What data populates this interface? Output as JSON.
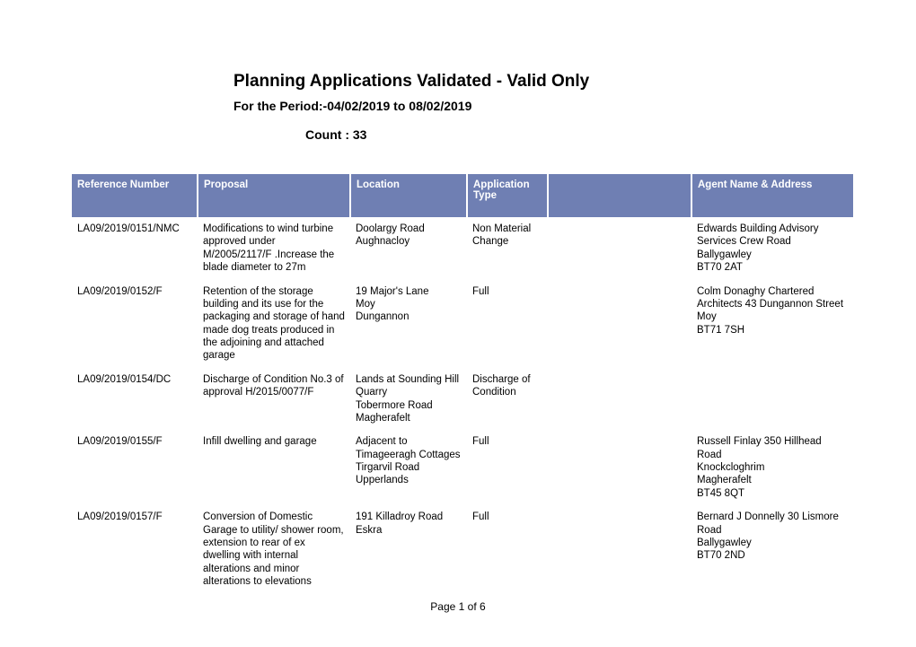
{
  "header": {
    "title": "Planning Applications Validated - Valid Only",
    "period": "For the Period:-04/02/2019   to 08/02/2019",
    "count": "Count : 33"
  },
  "table": {
    "header_bg": "#6f7fb3",
    "header_fg": "#ffffff",
    "columns": [
      "Reference Number",
      "Proposal",
      "Location",
      "Application Type",
      "",
      "Agent Name & Address"
    ],
    "rows": [
      {
        "ref": "LA09/2019/0151/NMC",
        "proposal": "Modifications to wind turbine approved under M/2005/2117/F .Increase the blade diameter to 27m",
        "location": "Doolargy Road\n Aughnacloy",
        "type": "Non Material Change",
        "blank": "",
        "agent": "Edwards Building Advisory Services Crew Road\n Ballygawley\n BT70 2AT"
      },
      {
        "ref": "LA09/2019/0152/F",
        "proposal": "Retention of the storage building and its use for the packaging and storage of hand made dog treats produced in the adjoining and attached garage",
        "location": "19 Major's Lane\n Moy\n Dungannon",
        "type": "Full",
        "blank": "",
        "agent": "Colm Donaghy Chartered Architects 43 Dungannon Street\n Moy\n BT71 7SH"
      },
      {
        "ref": "LA09/2019/0154/DC",
        "proposal": "Discharge of Condition No.3 of approval H/2015/0077/F",
        "location": "Lands at Sounding Hill Quarry\n Tobermore Road\n Magherafelt",
        "type": "Discharge of Condition",
        "blank": "",
        "agent": ""
      },
      {
        "ref": "LA09/2019/0155/F",
        "proposal": "Infill dwelling and garage",
        "location": "Adjacent to Timageeragh Cottages\n Tirgarvil Road\n Upperlands",
        "type": "Full",
        "blank": "",
        "agent": "Russell Finlay 350 Hillhead Road\n Knockcloghrim\n Magherafelt\n BT45 8QT"
      },
      {
        "ref": "LA09/2019/0157/F",
        "proposal": "Conversion of Domestic Garage to utility/ shower room, extension to rear of ex dwelling with internal alterations and minor alterations to elevations",
        "location": "191 Killadroy Road\n Eskra",
        "type": "Full",
        "blank": "",
        "agent": "Bernard J Donnelly 30 Lismore Road\n Ballygawley\n BT70 2ND"
      }
    ]
  },
  "footer": {
    "page_label": "Page 1 of 6"
  }
}
